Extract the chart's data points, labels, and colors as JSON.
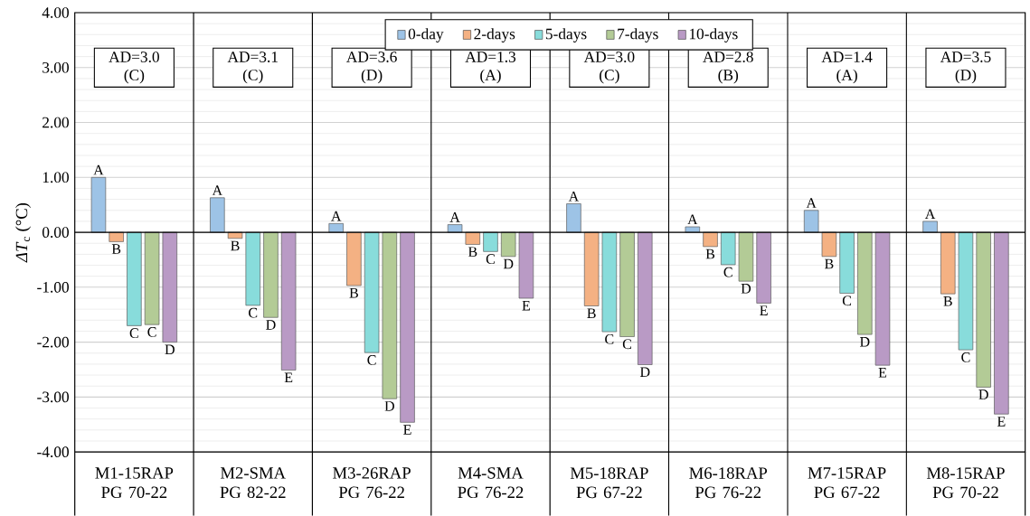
{
  "chart_data": {
    "type": "bar",
    "ylabel": "*ΔT*$_{c}$ (°C)",
    "categories": [
      "M1-15RAP PG 70-22",
      "M2-SMA PG 82-22",
      "M3-26RAP PG 76-22",
      "M4-SMA PG 76-22",
      "M5-18RAP PG 67-22",
      "M6-18RAP PG 76-22",
      "M7-15RAP PG 67-22",
      "M8-15RAP PG 70-22"
    ],
    "series": [
      {
        "name": "0-day",
        "color": "#9dc3e6",
        "values": [
          1.0,
          0.63,
          0.16,
          0.14,
          0.52,
          0.1,
          0.4,
          0.2
        ],
        "value_labels": [
          "A",
          "A",
          "A",
          "A",
          "A",
          "A",
          "A",
          "A"
        ]
      },
      {
        "name": "2-days",
        "color": "#f4b183",
        "values": [
          -0.17,
          -0.11,
          -0.97,
          -0.22,
          -1.34,
          -0.26,
          -0.44,
          -1.12
        ],
        "value_labels": [
          "B",
          "B",
          "B",
          "B",
          "B",
          "B",
          "B",
          "B"
        ]
      },
      {
        "name": "5-days",
        "color": "#88dcdb",
        "values": [
          -1.7,
          -1.33,
          -2.19,
          -0.35,
          -1.81,
          -0.59,
          -1.11,
          -2.14
        ],
        "value_labels": [
          "C",
          "C",
          "C",
          "C",
          "C",
          "C",
          "C",
          "C"
        ]
      },
      {
        "name": "7-days",
        "color": "#b3cb96",
        "values": [
          -1.68,
          -1.55,
          -3.03,
          -0.44,
          -1.9,
          -0.89,
          -1.86,
          -2.82
        ],
        "value_labels": [
          "C",
          "D",
          "D",
          "D",
          "C",
          "D",
          "D",
          "D"
        ]
      },
      {
        "name": "10-days",
        "color": "#b99ac5",
        "values": [
          -2.0,
          -2.51,
          -3.46,
          -1.2,
          -2.41,
          -1.29,
          -2.42,
          -3.31
        ],
        "value_labels": [
          "D",
          "E",
          "E",
          "E",
          "D",
          "E",
          "E",
          "E"
        ]
      }
    ],
    "annotations": [
      "AD=3.0 (C)",
      "AD=3.1 (C)",
      "AD=3.6 (D)",
      "AD=1.3 (A)",
      "AD=3.0 (C)",
      "AD=2.8 (B)",
      "AD=1.4 (A)",
      "AD=3.5 (D)"
    ],
    "ylim": [
      -4,
      4
    ],
    "yticks": [
      {
        "value": -4,
        "label": "-4.00"
      },
      {
        "value": -3,
        "label": "-3.00"
      },
      {
        "value": -2,
        "label": "-2.00"
      },
      {
        "value": -1,
        "label": "-1.00"
      },
      {
        "value": 0,
        "label": "0.00"
      },
      {
        "value": 1,
        "label": "1.00"
      },
      {
        "value": 2,
        "label": "2.00"
      },
      {
        "value": 3,
        "label": "3.00"
      },
      {
        "value": 4,
        "label": "4.00"
      }
    ],
    "grid": "y",
    "legend": "top"
  }
}
